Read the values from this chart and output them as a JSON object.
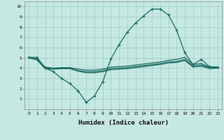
{
  "xlabel": "Humidex (Indice chaleur)",
  "xlim": [
    -0.5,
    23.5
  ],
  "ylim": [
    0,
    10.5
  ],
  "xticks": [
    0,
    1,
    2,
    3,
    4,
    5,
    6,
    7,
    8,
    9,
    10,
    11,
    12,
    13,
    14,
    15,
    16,
    17,
    18,
    19,
    20,
    21,
    22,
    23
  ],
  "yticks": [
    1,
    2,
    3,
    4,
    5,
    6,
    7,
    8,
    9,
    10
  ],
  "bg_color": "#c5e8e2",
  "grid_color": "#9dccc4",
  "line_color": "#1a6b60",
  "line1_x": [
    0,
    1,
    2,
    3,
    4,
    5,
    6,
    7,
    8,
    9,
    10,
    11,
    12,
    13,
    14,
    15,
    16,
    17,
    18,
    19,
    20,
    21,
    22,
    23
  ],
  "line1_y": [
    5.05,
    5.05,
    4.0,
    3.65,
    3.0,
    2.5,
    1.8,
    0.65,
    1.3,
    2.65,
    4.9,
    6.3,
    7.5,
    8.4,
    9.1,
    9.75,
    9.75,
    9.2,
    7.7,
    5.5,
    4.35,
    4.85,
    4.15,
    4.1
  ],
  "line2_x": [
    0,
    1,
    2,
    3,
    4,
    5,
    6,
    7,
    8,
    9,
    10,
    11,
    12,
    13,
    14,
    15,
    16,
    17,
    18,
    19,
    20,
    21,
    22,
    23
  ],
  "line2_y": [
    5.05,
    4.9,
    4.1,
    4.0,
    4.05,
    4.05,
    3.9,
    3.8,
    3.8,
    3.9,
    4.1,
    4.15,
    4.2,
    4.3,
    4.4,
    4.5,
    4.6,
    4.75,
    4.85,
    5.05,
    4.35,
    4.45,
    4.1,
    4.1
  ],
  "line3_x": [
    0,
    1,
    2,
    3,
    4,
    5,
    6,
    7,
    8,
    9,
    10,
    11,
    12,
    13,
    14,
    15,
    16,
    17,
    18,
    19,
    20,
    21,
    22,
    23
  ],
  "line3_y": [
    5.05,
    4.85,
    4.0,
    3.95,
    4.0,
    4.0,
    3.75,
    3.65,
    3.65,
    3.75,
    3.95,
    4.0,
    4.05,
    4.15,
    4.25,
    4.35,
    4.45,
    4.6,
    4.65,
    4.85,
    4.2,
    4.3,
    4.05,
    4.05
  ],
  "line4_x": [
    0,
    1,
    2,
    3,
    4,
    5,
    6,
    7,
    8,
    9,
    10,
    11,
    12,
    13,
    14,
    15,
    16,
    17,
    18,
    19,
    20,
    21,
    22,
    23
  ],
  "line4_y": [
    5.0,
    4.8,
    3.95,
    3.9,
    3.95,
    3.95,
    3.7,
    3.55,
    3.55,
    3.65,
    3.85,
    3.9,
    3.95,
    4.05,
    4.15,
    4.25,
    4.35,
    4.5,
    4.55,
    4.75,
    4.1,
    4.2,
    3.95,
    4.0
  ]
}
